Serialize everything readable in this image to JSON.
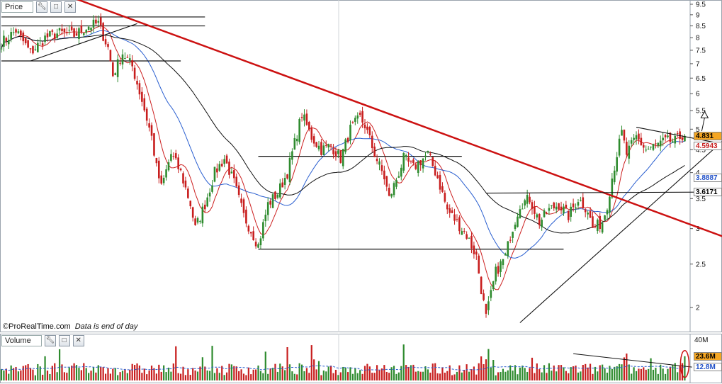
{
  "price_panel": {
    "title": "Price",
    "credit": "©ProRealTime.com",
    "credit_note": "Data is end of day",
    "badges": [
      {
        "value": "4.831",
        "price": 4.831,
        "bg": "#f5a623",
        "color": "#000000"
      },
      {
        "value": "4.5943",
        "price": 4.5943,
        "bg": "#ffffff",
        "color": "#c81e1e"
      },
      {
        "value": "3.8887",
        "price": 3.8887,
        "bg": "#ffffff",
        "color": "#2050c8"
      },
      {
        "value": "3.6171",
        "price": 3.6171,
        "bg": "#ffffff",
        "color": "#000000"
      }
    ]
  },
  "volume_panel": {
    "title": "Volume",
    "badges": [
      {
        "value": "23.6M",
        "volume": 23.6,
        "bg": "#f5a623",
        "color": "#000000"
      },
      {
        "value": "12.8M",
        "volume": 12.8,
        "bg": "#ffffff",
        "color": "#2050c8"
      }
    ],
    "axis_label": "40M"
  },
  "icons": {
    "wrench": "wrench-icon",
    "maximize": "maximize-icon",
    "close": "close-icon",
    "arrow": "up-arrow-icon"
  },
  "colors": {
    "up": "#2e8b2e",
    "down": "#c81e1e",
    "ma_fast": "#cc2020",
    "ma_mid": "#2a5fd0",
    "ma_slow": "#111111",
    "trendline": "#cc1111"
  },
  "chart_data": [
    {
      "type": "candlestick",
      "title": "Price",
      "y_scale": "log",
      "ylim": [
        1.8,
        9.5
      ],
      "y_ticks": [
        2,
        2.5,
        3,
        3.5,
        4,
        4.5,
        5,
        5.5,
        6,
        6.5,
        7,
        7.5,
        8,
        8.5,
        9,
        9.5
      ],
      "close_path": [
        [
          0,
          7.8
        ],
        [
          6,
          8.3
        ],
        [
          12,
          7.4
        ],
        [
          18,
          8.0
        ],
        [
          24,
          8.2
        ],
        [
          30,
          8.1
        ],
        [
          36,
          8.5
        ],
        [
          40,
          8.6
        ],
        [
          44,
          7.6
        ],
        [
          46,
          6.6
        ],
        [
          50,
          7.4
        ],
        [
          54,
          6.9
        ],
        [
          58,
          5.8
        ],
        [
          62,
          4.8
        ],
        [
          64,
          4.1
        ],
        [
          66,
          3.7
        ],
        [
          70,
          4.4
        ],
        [
          74,
          4.0
        ],
        [
          78,
          3.4
        ],
        [
          80,
          3.0
        ],
        [
          84,
          3.4
        ],
        [
          88,
          4.0
        ],
        [
          92,
          4.3
        ],
        [
          96,
          3.8
        ],
        [
          100,
          3.2
        ],
        [
          104,
          2.9
        ],
        [
          106,
          2.75
        ],
        [
          110,
          3.4
        ],
        [
          114,
          3.6
        ],
        [
          118,
          4.0
        ],
        [
          122,
          4.9
        ],
        [
          124,
          5.4
        ],
        [
          128,
          4.8
        ],
        [
          132,
          4.5
        ],
        [
          136,
          4.6
        ],
        [
          140,
          4.3
        ],
        [
          144,
          5.0
        ],
        [
          148,
          5.3
        ],
        [
          150,
          5.1
        ],
        [
          154,
          4.4
        ],
        [
          158,
          3.9
        ],
        [
          160,
          3.5
        ],
        [
          164,
          4.0
        ],
        [
          166,
          4.3
        ],
        [
          170,
          4.1
        ],
        [
          174,
          4.3
        ],
        [
          176,
          4.4
        ],
        [
          180,
          3.9
        ],
        [
          184,
          3.3
        ],
        [
          188,
          3.1
        ],
        [
          192,
          2.9
        ],
        [
          196,
          2.6
        ],
        [
          198,
          2.2
        ],
        [
          200,
          1.9
        ],
        [
          204,
          2.4
        ],
        [
          208,
          2.6
        ],
        [
          210,
          2.9
        ],
        [
          214,
          3.4
        ],
        [
          218,
          3.5
        ],
        [
          222,
          3.1
        ],
        [
          226,
          3.3
        ],
        [
          230,
          3.4
        ],
        [
          234,
          3.2
        ],
        [
          238,
          3.5
        ],
        [
          242,
          3.3
        ],
        [
          244,
          3.0
        ],
        [
          248,
          3.1
        ],
        [
          250,
          3.4
        ],
        [
          252,
          3.9
        ],
        [
          254,
          4.4
        ],
        [
          256,
          4.9
        ],
        [
          258,
          4.4
        ],
        [
          262,
          4.8
        ],
        [
          266,
          4.5
        ],
        [
          270,
          4.6
        ],
        [
          274,
          4.7
        ],
        [
          278,
          4.7
        ],
        [
          282,
          4.9
        ]
      ],
      "horizontal_levels": [
        {
          "price": 8.9,
          "from": 0,
          "to": 84
        },
        {
          "price": 8.5,
          "from": 0,
          "to": 84
        },
        {
          "price": 7.1,
          "from": 0,
          "to": 74
        },
        {
          "price": 4.35,
          "from": 106,
          "to": 190
        },
        {
          "price": 2.7,
          "from": 106,
          "to": 232
        }
      ],
      "trendlines": [
        {
          "name": "Long-term downtrend",
          "from": [
            30,
            9.8
          ],
          "to": [
            316,
            2.65
          ],
          "color": "#cc1111",
          "width": 2.5
        },
        {
          "name": "Support uptrend",
          "from": [
            214,
            1.85
          ],
          "to": [
            304,
            5.05
          ]
        },
        {
          "name": "Upper channel",
          "from": [
            262,
            5.05
          ],
          "to": [
            310,
            4.5
          ]
        },
        {
          "name": "Early triangle",
          "from": [
            12,
            7.1
          ],
          "to": [
            56,
            8.6
          ]
        },
        {
          "name": "Long MA line",
          "from": [
            200,
            3.6
          ],
          "to": [
            296,
            3.62
          ]
        }
      ],
      "moving_averages": [
        {
          "name": "MA fast",
          "color": "#cc2020",
          "last": 4.5943
        },
        {
          "name": "MA mid",
          "color": "#2a5fd0",
          "last": 3.8887
        },
        {
          "name": "MA slow",
          "color": "#111111",
          "last": 3.6171
        }
      ],
      "last_close": 4.831
    },
    {
      "type": "bar",
      "title": "Volume",
      "unit": "M",
      "ylim": [
        0,
        40
      ],
      "y_ticks": [
        40
      ],
      "last_volume": 23.6,
      "average_volume": 12.8
    }
  ]
}
